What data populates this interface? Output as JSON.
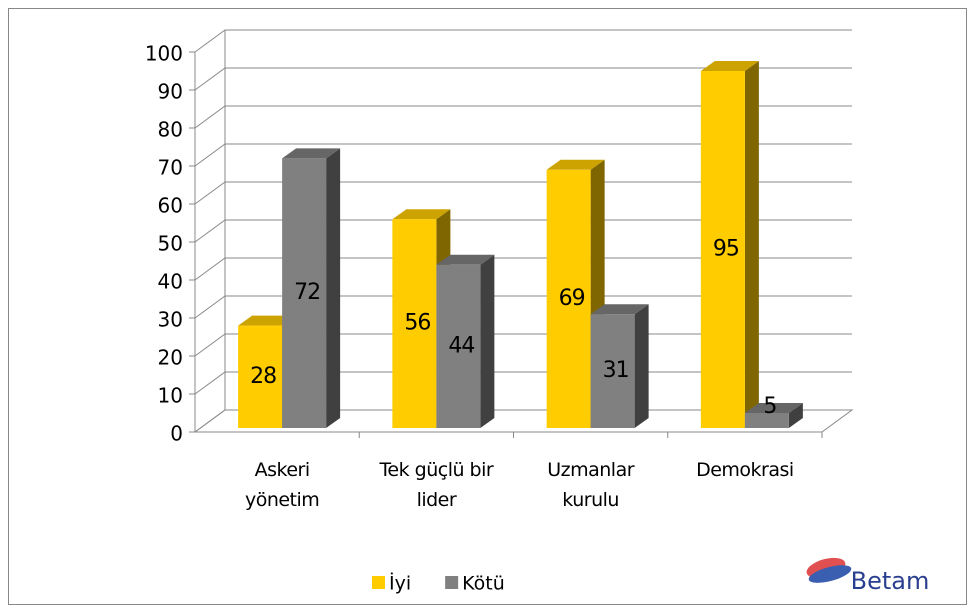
{
  "chart_data": {
    "type": "bar3d",
    "categories": [
      "Askeri yönetim",
      "Tek güçlü bir lider",
      "Uzmanlar kurulu",
      "Demokrasi"
    ],
    "series": [
      {
        "name": "İyi",
        "color": "#ffcc00",
        "values": [
          28,
          56,
          69,
          95
        ]
      },
      {
        "name": "Kötü",
        "color": "#808080",
        "values": [
          72,
          44,
          31,
          5
        ]
      }
    ],
    "ylim": [
      0,
      100
    ],
    "yticks": [
      0,
      10,
      20,
      30,
      40,
      50,
      60,
      70,
      80,
      90,
      100
    ],
    "grid": true,
    "legend": "bottom",
    "logo": "Betam"
  }
}
